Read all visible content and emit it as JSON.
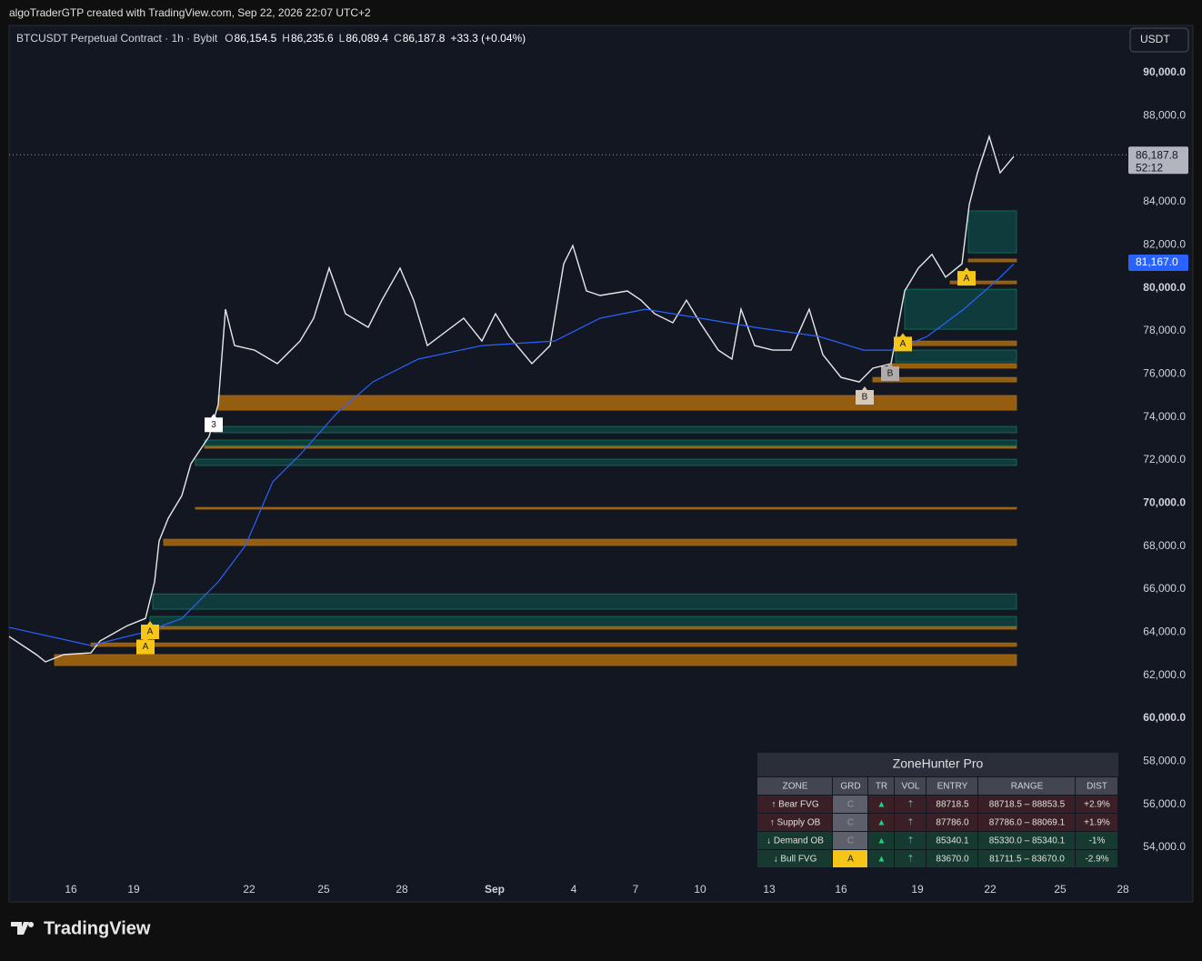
{
  "header": {
    "credit": "algoTraderGTP created with TradingView.com, Sep 22, 2026 22:07 UTC+2"
  },
  "chart_data": {
    "type": "line",
    "title": "BTCUSDT Perpetual Contract · 1h · Bybit",
    "ohlc": [
      {
        "key": "O",
        "value": "86,154.5"
      },
      {
        "key": "H",
        "value": "86,235.6"
      },
      {
        "key": "L",
        "value": "86,089.4"
      },
      {
        "key": "C",
        "value": "86,187.8"
      }
    ],
    "change": "+33.3 (+0.04%)",
    "currency": "USDT",
    "xlim": [
      0,
      1225
    ],
    "xticks": [
      {
        "value": 68,
        "label": "16"
      },
      {
        "value": 137,
        "label": "19"
      },
      {
        "value": 264,
        "label": "22"
      },
      {
        "value": 346,
        "label": "25"
      },
      {
        "value": 432,
        "label": "28"
      },
      {
        "value": 534,
        "label": "Sep"
      },
      {
        "value": 621,
        "label": "4"
      },
      {
        "value": 689,
        "label": "7"
      },
      {
        "value": 760,
        "label": "10"
      },
      {
        "value": 836,
        "label": "13"
      },
      {
        "value": 915,
        "label": "16"
      },
      {
        "value": 999,
        "label": "19"
      },
      {
        "value": 1079,
        "label": "22"
      },
      {
        "value": 1156,
        "label": "25"
      },
      {
        "value": 1225,
        "label": "28"
      }
    ],
    "ylim": [
      52606,
      92113
    ],
    "yticks": [
      {
        "value": 54000,
        "label": "54,000.0"
      },
      {
        "value": 56000,
        "label": "56,000.0"
      },
      {
        "value": 58000,
        "label": "58,000.0"
      },
      {
        "value": 60000,
        "label": "60,000.0"
      },
      {
        "value": 62000,
        "label": "62,000.0"
      },
      {
        "value": 64000,
        "label": "64,000.0"
      },
      {
        "value": 66000,
        "label": "66,000.0"
      },
      {
        "value": 68000,
        "label": "68,000.0"
      },
      {
        "value": 70000,
        "label": "70,000.0"
      },
      {
        "value": 72000,
        "label": "72,000.0"
      },
      {
        "value": 74000,
        "label": "74,000.0"
      },
      {
        "value": 76000,
        "label": "76,000.0"
      },
      {
        "value": 78000,
        "label": "78,000.0"
      },
      {
        "value": 80000,
        "label": "80,000.0"
      },
      {
        "value": 82000,
        "label": "82,000.0"
      },
      {
        "value": 84000,
        "label": "84,000.0"
      },
      {
        "value": 86000,
        "label": "86,000.0"
      },
      {
        "value": 88000,
        "label": "88,000.0"
      },
      {
        "value": 90000,
        "label": "90,000.0"
      }
    ],
    "series": [
      {
        "color": "#e8e8e8",
        "x": [
          0,
          30,
          40,
          60,
          90,
          100,
          130,
          150,
          160,
          165,
          175,
          190,
          200,
          220,
          230,
          238,
          248,
          270,
          295,
          320,
          335,
          352,
          370,
          395,
          410,
          430,
          445,
          460,
          480,
          500,
          520,
          535,
          550,
          575,
          595,
          610,
          620,
          635,
          650,
          680,
          695,
          710,
          730,
          745,
          760,
          780,
          795,
          805,
          820,
          840,
          860,
          880,
          895,
          915,
          935,
          950,
          970,
          985,
          1000,
          1015,
          1030,
          1048,
          1056,
          1065,
          1078,
          1090,
          1105
        ],
        "values": [
          63800,
          62960,
          62620,
          62960,
          63040,
          63590,
          64300,
          64640,
          66340,
          68240,
          69290,
          70350,
          71830,
          73100,
          74580,
          79010,
          77320,
          77110,
          76480,
          77530,
          78590,
          80920,
          78800,
          78170,
          79430,
          80920,
          79430,
          77320,
          77960,
          78590,
          77530,
          78800,
          77750,
          76480,
          77320,
          81120,
          81970,
          79860,
          79650,
          79860,
          79430,
          78800,
          78380,
          79430,
          78380,
          77110,
          76690,
          79010,
          77320,
          77110,
          77110,
          79010,
          76900,
          75840,
          75630,
          76270,
          76480,
          79860,
          80920,
          81560,
          80500,
          81120,
          83870,
          85350,
          87040,
          85350,
          86110
        ]
      },
      {
        "color": "#2962ff",
        "x": [
          0,
          90,
          150,
          190,
          230,
          260,
          290,
          320,
          360,
          400,
          450,
          520,
          600,
          650,
          700,
          760,
          820,
          890,
          940,
          975,
          1010,
          1050,
          1090,
          1105
        ],
        "values": [
          64220,
          63380,
          64010,
          64640,
          66340,
          68030,
          70990,
          72250,
          74160,
          75630,
          76690,
          77320,
          77530,
          78590,
          79010,
          78590,
          78170,
          77750,
          77110,
          77110,
          77750,
          79010,
          80490,
          81120
        ]
      }
    ],
    "zone_end": 1108,
    "zones": [
      {
        "kind": "bull",
        "x0": 1055,
        "low": 81630,
        "high": 83580
      },
      {
        "kind": "bull",
        "x0": 985,
        "low": 78080,
        "high": 79940
      },
      {
        "kind": "bear",
        "x0": 1035,
        "low": 80190,
        "high": 80320
      },
      {
        "kind": "bear",
        "x0": 1055,
        "low": 81210,
        "high": 81340
      },
      {
        "kind": "bear",
        "x0": 985,
        "low": 77320,
        "high": 77530
      },
      {
        "kind": "bull",
        "x0": 975,
        "low": 76560,
        "high": 77110
      },
      {
        "kind": "bear",
        "x0": 970,
        "low": 76270,
        "high": 76480
      },
      {
        "kind": "bear",
        "x0": 950,
        "low": 75630,
        "high": 75840
      },
      {
        "kind": "bear",
        "x0": 230,
        "low": 74320,
        "high": 75000
      },
      {
        "kind": "bull",
        "x0": 225,
        "low": 73270,
        "high": 73560
      },
      {
        "kind": "bull",
        "x0": 215,
        "low": 72670,
        "high": 72930
      },
      {
        "kind": "bear",
        "x0": 215,
        "low": 72550,
        "high": 72630
      },
      {
        "kind": "bull",
        "x0": 205,
        "low": 71750,
        "high": 72040
      },
      {
        "kind": "bear",
        "x0": 205,
        "low": 69720,
        "high": 69800
      },
      {
        "kind": "bear",
        "x0": 170,
        "low": 68030,
        "high": 68320
      },
      {
        "kind": "bull",
        "x0": 158,
        "low": 65070,
        "high": 65780
      },
      {
        "kind": "bull",
        "x0": 155,
        "low": 64260,
        "high": 64730
      },
      {
        "kind": "bear",
        "x0": 150,
        "low": 64140,
        "high": 64260
      },
      {
        "kind": "bear",
        "x0": 90,
        "low": 63340,
        "high": 63500
      },
      {
        "kind": "bear",
        "x0": 50,
        "low": 62450,
        "high": 62960
      }
    ],
    "markers": [
      {
        "label": "A",
        "x": 150,
        "y": 63400,
        "color": "#f5c518"
      },
      {
        "label": "A",
        "x": 155,
        "y": 64100,
        "color": "#f5c518"
      },
      {
        "label": "3",
        "x": 225,
        "y": 73720,
        "color": "#ffffff"
      },
      {
        "label": "A",
        "x": 983,
        "y": 77480,
        "color": "#f5c518"
      },
      {
        "label": "B",
        "x": 969,
        "y": 76100,
        "color": "#b0aaa8"
      },
      {
        "label": "B",
        "x": 941,
        "y": 75000,
        "color": "#d8c8b8"
      },
      {
        "label": "A",
        "x": 1053,
        "y": 80530,
        "color": "#f5c518"
      }
    ],
    "last_price": {
      "value": 86187.8,
      "label": "86,187.8",
      "countdown": "52:12"
    },
    "ma_price": {
      "value": 81167,
      "label": "81,167.0",
      "color": "#2962ff"
    }
  },
  "table": {
    "title": "ZoneHunter Pro",
    "columns": [
      "ZONE",
      "GRD",
      "TR",
      "VOL",
      "ENTRY",
      "RANGE",
      "DIST"
    ],
    "rows": [
      {
        "tone": "bear",
        "grd": "gray",
        "cells": [
          "↑ Bear FVG",
          "C",
          "▲",
          "⇡",
          "88718.5",
          "88718.5 – 88853.5",
          "+2.9%"
        ]
      },
      {
        "tone": "bear",
        "grd": "gray",
        "cells": [
          "↑ Supply OB",
          "C",
          "▲",
          "⇡",
          "87786.0",
          "87786.0 – 88069.1",
          "+1.9%"
        ]
      },
      {
        "tone": "bull",
        "grd": "gray",
        "cells": [
          "↓ Demand OB",
          "C",
          "▲",
          "⇡",
          "85340.1",
          "85330.0 – 85340.1",
          "-1%"
        ]
      },
      {
        "tone": "bull",
        "grd": "yellow",
        "cells": [
          "↓ Bull FVG",
          "A",
          "▲",
          "⇡",
          "83670.0",
          "81711.5 – 83670.0",
          "-2.9%"
        ]
      }
    ]
  },
  "footer": {
    "logo": "TradingView"
  }
}
